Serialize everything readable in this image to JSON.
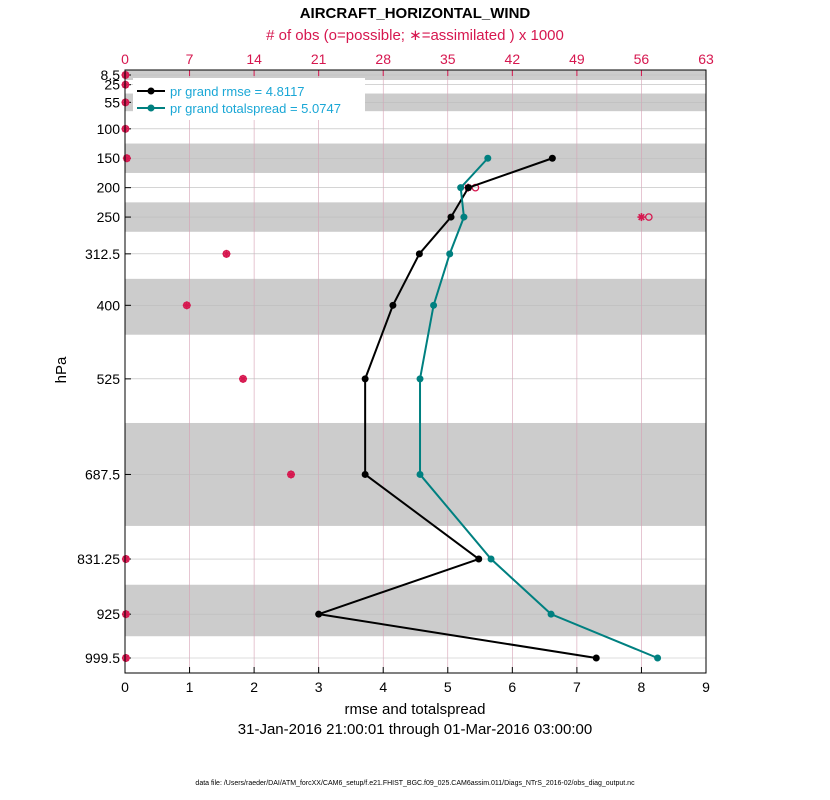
{
  "chart_data": {
    "type": "line",
    "title": "AIRCRAFT_HORIZONTAL_WIND",
    "top_axis_label": "# of obs (o=possible; ∗=assimilated ) x 1000",
    "xlabel": "rmse and totalspread",
    "ylabel": "hPa",
    "date_range": "31-Jan-2016 21:00:01 through 01-Mar-2016 03:00:00",
    "footer": "data file: /Users/raeder/DAI/ATM_forcXX/CAM6_setup/f.e21.FHIST_BGC.f09_025.CAM6assim.011/Diags_NTrS_2016-02/obs_diag_output.nc",
    "xlim": [
      0,
      9
    ],
    "x_ticks": [
      "0",
      "1",
      "2",
      "3",
      "4",
      "5",
      "6",
      "7",
      "8",
      "9"
    ],
    "top_xlim": [
      0,
      63
    ],
    "top_ticks": [
      "0",
      "7",
      "14",
      "21",
      "28",
      "35",
      "42",
      "49",
      "56",
      "63"
    ],
    "levels": [
      8.5,
      25,
      55,
      100,
      150,
      200,
      250,
      312.5,
      400,
      525,
      687.5,
      831.25,
      925,
      999.5
    ],
    "level_labels": [
      "8.5",
      "25",
      "55",
      "100",
      "150",
      "200",
      "250",
      "312.5",
      "400",
      "525",
      "687.5",
      "831.25",
      "925",
      "999.5"
    ],
    "series": [
      {
        "name": "pr grand rmse = 4.8117",
        "color": "#000000",
        "levels": [
          150,
          200,
          250,
          312.5,
          400,
          525,
          687.5,
          831.25,
          925,
          999.5
        ],
        "values": [
          6.62,
          5.32,
          5.05,
          4.56,
          4.15,
          3.72,
          3.72,
          5.48,
          3.0,
          7.3
        ]
      },
      {
        "name": "pr grand totalspread = 5.0747",
        "color": "#008080",
        "levels": [
          150,
          200,
          250,
          312.5,
          400,
          525,
          687.5,
          831.25,
          925,
          999.5
        ],
        "values": [
          5.62,
          5.2,
          5.25,
          5.03,
          4.78,
          4.57,
          4.57,
          5.67,
          6.6,
          8.25
        ]
      }
    ],
    "obs_counts": {
      "levels": [
        8.5,
        25,
        55,
        100,
        150,
        200,
        250,
        312.5,
        400,
        525,
        687.5,
        831.25,
        925,
        999.5
      ],
      "possible": [
        0.05,
        0.05,
        0.05,
        0.05,
        0.2,
        38.0,
        56.8,
        11.0,
        6.7,
        12.8,
        18.0,
        0.1,
        0.1,
        0.1
      ],
      "assimilated": [
        0.05,
        0.05,
        0.05,
        0.05,
        0.2,
        37.2,
        56.0,
        11.0,
        6.7,
        12.8,
        18.0,
        0.1,
        0.1,
        0.1
      ],
      "color": "#d6174f"
    },
    "shaded_bands": [
      [
        0,
        17
      ],
      [
        40,
        70
      ],
      [
        125,
        175
      ],
      [
        225,
        275
      ],
      [
        355,
        450
      ],
      [
        600,
        775
      ],
      [
        875,
        962.5
      ]
    ],
    "pressure_limits": [
      0,
      1025
    ]
  }
}
